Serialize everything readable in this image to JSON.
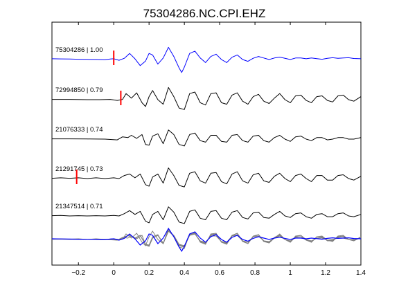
{
  "chart_data": {
    "type": "line",
    "title": "75304286.NC.CPI.EHZ",
    "xlabel": "",
    "ylabel": "",
    "xlim": [
      -0.35,
      1.4
    ],
    "xticks": [
      -0.2,
      0,
      0.2,
      0.4,
      0.6,
      0.8,
      1,
      1.2,
      1.4
    ],
    "xtick_labels": [
      "−0.2",
      "0",
      "0.2",
      "0.4",
      "0.6",
      "0.8",
      "1",
      "1.2",
      "1.4"
    ],
    "grid": false,
    "colors": {
      "reference": "#0000ff",
      "trace": "#000000",
      "overlay": "#808080",
      "pick": "#ff0000",
      "axes": "#000000"
    },
    "series": [
      {
        "name": "75304286 | 1.00",
        "label": "75304286 | 1.00",
        "pick_x": 0.0,
        "color": "blue",
        "points": [
          [
            -0.35,
            0.05
          ],
          [
            -0.3,
            0.04
          ],
          [
            -0.25,
            0.03
          ],
          [
            -0.2,
            0.02
          ],
          [
            -0.15,
            0.01
          ],
          [
            -0.1,
            0
          ],
          [
            -0.05,
            -0.02
          ],
          [
            -0.02,
            0.03
          ],
          [
            0.0,
            0.05
          ],
          [
            0.03,
            -0.05
          ],
          [
            0.06,
            0.08
          ],
          [
            0.09,
            0.4
          ],
          [
            0.12,
            0.05
          ],
          [
            0.15,
            -0.4
          ],
          [
            0.18,
            -0.1
          ],
          [
            0.2,
            0.4
          ],
          [
            0.22,
            0.3
          ],
          [
            0.25,
            -0.3
          ],
          [
            0.28,
            0.1
          ],
          [
            0.31,
            0.8
          ],
          [
            0.34,
            0.2
          ],
          [
            0.37,
            -0.55
          ],
          [
            0.385,
            -0.85
          ],
          [
            0.4,
            -0.5
          ],
          [
            0.43,
            0.4
          ],
          [
            0.46,
            0.55
          ],
          [
            0.49,
            0.1
          ],
          [
            0.52,
            -0.2
          ],
          [
            0.55,
            0.2
          ],
          [
            0.58,
            0.35
          ],
          [
            0.61,
            0.0
          ],
          [
            0.64,
            -0.2
          ],
          [
            0.67,
            0.15
          ],
          [
            0.7,
            0.3
          ],
          [
            0.73,
            0.0
          ],
          [
            0.76,
            -0.12
          ],
          [
            0.79,
            0.08
          ],
          [
            0.82,
            0.2
          ],
          [
            0.85,
            0.1
          ],
          [
            0.88,
            0.0
          ],
          [
            0.91,
            0.1
          ],
          [
            0.94,
            0.16
          ],
          [
            0.97,
            0.08
          ],
          [
            1.0,
            0.0
          ],
          [
            1.03,
            0.1
          ],
          [
            1.06,
            0.1
          ],
          [
            1.09,
            0.05
          ],
          [
            1.12,
            0.1
          ],
          [
            1.15,
            0.06
          ],
          [
            1.18,
            0.02
          ],
          [
            1.21,
            0.08
          ],
          [
            1.24,
            0.12
          ],
          [
            1.27,
            0.08
          ],
          [
            1.3,
            0.1
          ],
          [
            1.33,
            0.12
          ],
          [
            1.36,
            0.07
          ],
          [
            1.4,
            0.05
          ]
        ]
      },
      {
        "name": "72994850 | 0.79",
        "label": "72994850 | 0.79",
        "pick_x": 0.04,
        "color": "black",
        "points": [
          [
            -0.35,
            0.02
          ],
          [
            -0.25,
            0.02
          ],
          [
            -0.15,
            0.0
          ],
          [
            -0.08,
            0.0
          ],
          [
            -0.02,
            0.02
          ],
          [
            0.02,
            -0.05
          ],
          [
            0.05,
            0.02
          ],
          [
            0.07,
            0.4
          ],
          [
            0.1,
            0.1
          ],
          [
            0.13,
            0.45
          ],
          [
            0.16,
            -0.2
          ],
          [
            0.18,
            -0.45
          ],
          [
            0.2,
            0.2
          ],
          [
            0.22,
            0.6
          ],
          [
            0.25,
            0.0
          ],
          [
            0.28,
            -0.3
          ],
          [
            0.31,
            0.8
          ],
          [
            0.34,
            0.2
          ],
          [
            0.37,
            -0.55
          ],
          [
            0.4,
            -0.65
          ],
          [
            0.43,
            0.4
          ],
          [
            0.46,
            0.5
          ],
          [
            0.49,
            -0.2
          ],
          [
            0.52,
            -0.35
          ],
          [
            0.55,
            0.4
          ],
          [
            0.58,
            0.45
          ],
          [
            0.61,
            -0.2
          ],
          [
            0.64,
            -0.3
          ],
          [
            0.67,
            0.3
          ],
          [
            0.7,
            0.45
          ],
          [
            0.73,
            -0.1
          ],
          [
            0.76,
            -0.3
          ],
          [
            0.79,
            0.2
          ],
          [
            0.82,
            0.35
          ],
          [
            0.85,
            -0.1
          ],
          [
            0.88,
            -0.25
          ],
          [
            0.91,
            0.1
          ],
          [
            0.94,
            0.4
          ],
          [
            0.97,
            0.0
          ],
          [
            1.0,
            -0.2
          ],
          [
            1.03,
            0.25
          ],
          [
            1.06,
            0.3
          ],
          [
            1.09,
            -0.05
          ],
          [
            1.12,
            -0.2
          ],
          [
            1.15,
            0.2
          ],
          [
            1.18,
            0.25
          ],
          [
            1.21,
            -0.05
          ],
          [
            1.24,
            -0.15
          ],
          [
            1.27,
            0.25
          ],
          [
            1.3,
            0.3
          ],
          [
            1.33,
            0.0
          ],
          [
            1.36,
            -0.1
          ],
          [
            1.4,
            0.2
          ]
        ]
      },
      {
        "name": "21076333 | 0.74",
        "label": "21076333 | 0.74",
        "pick_x": null,
        "color": "black",
        "points": [
          [
            -0.35,
            0.02
          ],
          [
            -0.25,
            0.02
          ],
          [
            -0.15,
            0.01
          ],
          [
            -0.05,
            0.0
          ],
          [
            0.02,
            -0.05
          ],
          [
            0.05,
            0.15
          ],
          [
            0.08,
            0.1
          ],
          [
            0.1,
            0.25
          ],
          [
            0.13,
            0.05
          ],
          [
            0.16,
            0.3
          ],
          [
            0.18,
            -0.35
          ],
          [
            0.2,
            -0.4
          ],
          [
            0.22,
            0.2
          ],
          [
            0.25,
            0.35
          ],
          [
            0.28,
            -0.3
          ],
          [
            0.31,
            0.6
          ],
          [
            0.34,
            0.3
          ],
          [
            0.37,
            -0.35
          ],
          [
            0.4,
            -0.45
          ],
          [
            0.43,
            0.3
          ],
          [
            0.46,
            0.4
          ],
          [
            0.49,
            -0.1
          ],
          [
            0.52,
            -0.2
          ],
          [
            0.55,
            0.25
          ],
          [
            0.58,
            0.25
          ],
          [
            0.61,
            -0.15
          ],
          [
            0.64,
            -0.2
          ],
          [
            0.67,
            0.25
          ],
          [
            0.7,
            0.3
          ],
          [
            0.73,
            -0.1
          ],
          [
            0.76,
            -0.2
          ],
          [
            0.79,
            0.2
          ],
          [
            0.82,
            0.25
          ],
          [
            0.85,
            -0.1
          ],
          [
            0.88,
            -0.2
          ],
          [
            0.91,
            0.1
          ],
          [
            0.94,
            0.25
          ],
          [
            0.97,
            0.0
          ],
          [
            1.0,
            -0.15
          ],
          [
            1.03,
            0.15
          ],
          [
            1.06,
            0.2
          ],
          [
            1.09,
            0.0
          ],
          [
            1.12,
            -0.1
          ],
          [
            1.15,
            0.1
          ],
          [
            1.18,
            0.1
          ],
          [
            1.21,
            -0.05
          ],
          [
            1.24,
            0.0
          ],
          [
            1.27,
            0.1
          ],
          [
            1.3,
            0.1
          ],
          [
            1.33,
            0.0
          ],
          [
            1.36,
            0.0
          ],
          [
            1.4,
            0.1
          ]
        ]
      },
      {
        "name": "21291745 | 0.73",
        "label": "21291745 | 0.73",
        "pick_x": -0.21,
        "color": "black",
        "points": [
          [
            -0.35,
            0.02
          ],
          [
            -0.3,
            0.05
          ],
          [
            -0.25,
            0.02
          ],
          [
            -0.2,
            0.05
          ],
          [
            -0.15,
            0.0
          ],
          [
            -0.1,
            0.05
          ],
          [
            -0.05,
            0.0
          ],
          [
            0.0,
            0.05
          ],
          [
            0.03,
            0.0
          ],
          [
            0.06,
            0.2
          ],
          [
            0.09,
            0.3
          ],
          [
            0.12,
            0.05
          ],
          [
            0.15,
            0.3
          ],
          [
            0.18,
            -0.4
          ],
          [
            0.2,
            -0.5
          ],
          [
            0.22,
            0.1
          ],
          [
            0.25,
            0.3
          ],
          [
            0.28,
            -0.3
          ],
          [
            0.31,
            0.7
          ],
          [
            0.34,
            0.2
          ],
          [
            0.37,
            -0.45
          ],
          [
            0.4,
            -0.55
          ],
          [
            0.43,
            0.35
          ],
          [
            0.46,
            0.45
          ],
          [
            0.49,
            -0.15
          ],
          [
            0.52,
            -0.3
          ],
          [
            0.55,
            0.35
          ],
          [
            0.58,
            0.4
          ],
          [
            0.61,
            -0.2
          ],
          [
            0.64,
            -0.35
          ],
          [
            0.67,
            0.3
          ],
          [
            0.7,
            0.45
          ],
          [
            0.73,
            -0.15
          ],
          [
            0.76,
            -0.3
          ],
          [
            0.79,
            0.25
          ],
          [
            0.82,
            0.35
          ],
          [
            0.85,
            -0.15
          ],
          [
            0.88,
            -0.25
          ],
          [
            0.91,
            0.15
          ],
          [
            0.94,
            0.35
          ],
          [
            0.97,
            0.0
          ],
          [
            1.0,
            -0.2
          ],
          [
            1.03,
            0.2
          ],
          [
            1.06,
            0.3
          ],
          [
            1.09,
            0.0
          ],
          [
            1.12,
            -0.2
          ],
          [
            1.15,
            0.2
          ],
          [
            1.18,
            0.2
          ],
          [
            1.21,
            -0.1
          ],
          [
            1.24,
            -0.1
          ],
          [
            1.27,
            0.2
          ],
          [
            1.3,
            0.25
          ],
          [
            1.33,
            0.0
          ],
          [
            1.36,
            -0.1
          ],
          [
            1.4,
            0.15
          ]
        ]
      },
      {
        "name": "21347514 | 0.71",
        "label": "21347514 | 0.71",
        "pick_x": null,
        "color": "black",
        "points": [
          [
            -0.35,
            0.02
          ],
          [
            -0.3,
            0.03
          ],
          [
            -0.25,
            0.0
          ],
          [
            -0.2,
            0.02
          ],
          [
            -0.15,
            0.0
          ],
          [
            -0.1,
            0.02
          ],
          [
            -0.05,
            0.0
          ],
          [
            0.0,
            0.03
          ],
          [
            0.03,
            0.0
          ],
          [
            0.06,
            0.15
          ],
          [
            0.09,
            0.35
          ],
          [
            0.12,
            0.1
          ],
          [
            0.15,
            0.3
          ],
          [
            0.18,
            -0.35
          ],
          [
            0.2,
            -0.45
          ],
          [
            0.22,
            0.1
          ],
          [
            0.25,
            0.3
          ],
          [
            0.28,
            -0.25
          ],
          [
            0.31,
            0.6
          ],
          [
            0.34,
            0.25
          ],
          [
            0.37,
            -0.4
          ],
          [
            0.4,
            -0.5
          ],
          [
            0.43,
            0.3
          ],
          [
            0.46,
            0.4
          ],
          [
            0.49,
            -0.15
          ],
          [
            0.52,
            -0.25
          ],
          [
            0.55,
            0.3
          ],
          [
            0.58,
            0.35
          ],
          [
            0.61,
            -0.15
          ],
          [
            0.64,
            -0.25
          ],
          [
            0.67,
            0.25
          ],
          [
            0.7,
            0.35
          ],
          [
            0.73,
            -0.1
          ],
          [
            0.76,
            -0.2
          ],
          [
            0.79,
            0.2
          ],
          [
            0.82,
            0.25
          ],
          [
            0.85,
            -0.1
          ],
          [
            0.88,
            -0.15
          ],
          [
            0.91,
            0.1
          ],
          [
            0.94,
            0.3
          ],
          [
            0.97,
            0.0
          ],
          [
            1.0,
            -0.1
          ],
          [
            1.03,
            0.15
          ],
          [
            1.06,
            0.2
          ],
          [
            1.09,
            -0.05
          ],
          [
            1.12,
            -0.15
          ],
          [
            1.15,
            0.1
          ],
          [
            1.18,
            0.15
          ],
          [
            1.21,
            -0.05
          ],
          [
            1.24,
            -0.05
          ],
          [
            1.27,
            0.15
          ],
          [
            1.3,
            0.2
          ],
          [
            1.33,
            0.0
          ],
          [
            1.36,
            -0.05
          ],
          [
            1.4,
            0.1
          ]
        ]
      }
    ]
  }
}
